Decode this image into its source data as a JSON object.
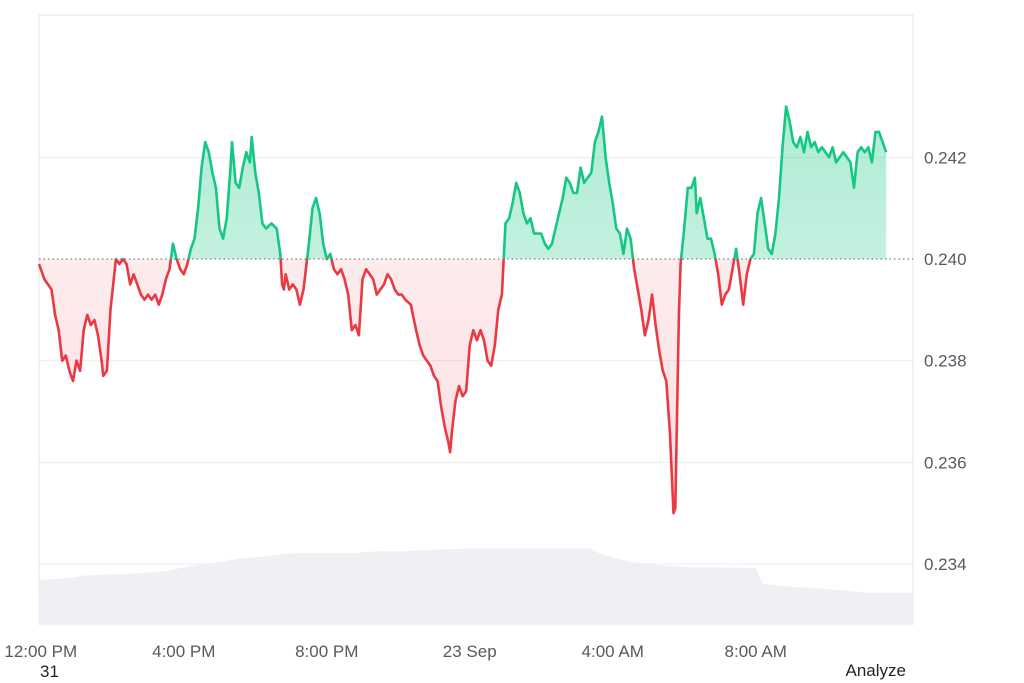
{
  "footer": {
    "left_text": "31",
    "analyze_label": "Analyze"
  },
  "chart_data": {
    "type": "line",
    "title": "",
    "xlabel": "",
    "ylabel": "",
    "baseline": 0.24,
    "ylim": [
      0.2328,
      0.2448
    ],
    "yticks": [
      0.234,
      0.236,
      0.238,
      0.24,
      0.242
    ],
    "ytick_labels": [
      "0.234",
      "0.236",
      "0.238",
      "0.240",
      "0.242"
    ],
    "xticks": [
      {
        "label": "12:00 PM",
        "hours": 0
      },
      {
        "label": "4:00 PM",
        "hours": 4
      },
      {
        "label": "8:00 PM",
        "hours": 8
      },
      {
        "label": "23 Sep",
        "hours": 12
      },
      {
        "label": "4:00 AM",
        "hours": 16
      },
      {
        "label": "8:00 AM",
        "hours": 20
      }
    ],
    "xrange_hours": [
      -0.05,
      24.4
    ],
    "grid": true,
    "colors": {
      "above": "#16c784",
      "below": "#ea3943",
      "above_fill": "#16c784",
      "below_fill": "#ea3943",
      "volume": "#eef0f3",
      "grid": "#eceef1"
    },
    "series": [
      {
        "points": [
          [
            -0.05,
            0.2399
          ],
          [
            0.1,
            0.2396
          ],
          [
            0.3,
            0.2394
          ],
          [
            0.4,
            0.2389
          ],
          [
            0.5,
            0.2386
          ],
          [
            0.6,
            0.238
          ],
          [
            0.7,
            0.2381
          ],
          [
            0.8,
            0.2378
          ],
          [
            0.9,
            0.2376
          ],
          [
            1.0,
            0.238
          ],
          [
            1.1,
            0.2378
          ],
          [
            1.2,
            0.2386
          ],
          [
            1.3,
            0.2389
          ],
          [
            1.4,
            0.2387
          ],
          [
            1.5,
            0.2388
          ],
          [
            1.6,
            0.2385
          ],
          [
            1.7,
            0.238
          ],
          [
            1.75,
            0.2377
          ],
          [
            1.85,
            0.2378
          ],
          [
            1.95,
            0.239
          ],
          [
            2.1,
            0.24
          ],
          [
            2.2,
            0.2399
          ],
          [
            2.3,
            0.24
          ],
          [
            2.4,
            0.2399
          ],
          [
            2.5,
            0.2395
          ],
          [
            2.6,
            0.2397
          ],
          [
            2.7,
            0.2395
          ],
          [
            2.8,
            0.2393
          ],
          [
            2.9,
            0.2392
          ],
          [
            3.0,
            0.2393
          ],
          [
            3.1,
            0.2392
          ],
          [
            3.2,
            0.2393
          ],
          [
            3.3,
            0.2391
          ],
          [
            3.4,
            0.2393
          ],
          [
            3.5,
            0.2396
          ],
          [
            3.6,
            0.2398
          ],
          [
            3.7,
            0.2403
          ],
          [
            3.8,
            0.24
          ],
          [
            3.9,
            0.2398
          ],
          [
            4.0,
            0.2397
          ],
          [
            4.1,
            0.2399
          ],
          [
            4.2,
            0.2402
          ],
          [
            4.3,
            0.2404
          ],
          [
            4.4,
            0.241
          ],
          [
            4.5,
            0.2418
          ],
          [
            4.6,
            0.2423
          ],
          [
            4.7,
            0.2421
          ],
          [
            4.8,
            0.2417
          ],
          [
            4.9,
            0.2414
          ],
          [
            5.0,
            0.2406
          ],
          [
            5.1,
            0.2404
          ],
          [
            5.2,
            0.2408
          ],
          [
            5.3,
            0.2417
          ],
          [
            5.35,
            0.2423
          ],
          [
            5.45,
            0.2415
          ],
          [
            5.55,
            0.2414
          ],
          [
            5.65,
            0.2418
          ],
          [
            5.75,
            0.2421
          ],
          [
            5.85,
            0.2419
          ],
          [
            5.9,
            0.2424
          ],
          [
            6.0,
            0.2417
          ],
          [
            6.1,
            0.2413
          ],
          [
            6.2,
            0.2407
          ],
          [
            6.3,
            0.2406
          ],
          [
            6.45,
            0.2407
          ],
          [
            6.6,
            0.2406
          ],
          [
            6.7,
            0.2401
          ],
          [
            6.75,
            0.2395
          ],
          [
            6.8,
            0.2394
          ],
          [
            6.85,
            0.2397
          ],
          [
            6.95,
            0.2394
          ],
          [
            7.05,
            0.2395
          ],
          [
            7.15,
            0.2394
          ],
          [
            7.25,
            0.2391
          ],
          [
            7.35,
            0.2394
          ],
          [
            7.5,
            0.2403
          ],
          [
            7.6,
            0.241
          ],
          [
            7.7,
            0.2412
          ],
          [
            7.8,
            0.2409
          ],
          [
            7.9,
            0.2403
          ],
          [
            8.0,
            0.24
          ],
          [
            8.1,
            0.2401
          ],
          [
            8.2,
            0.2398
          ],
          [
            8.3,
            0.2397
          ],
          [
            8.4,
            0.2398
          ],
          [
            8.5,
            0.2396
          ],
          [
            8.6,
            0.2393
          ],
          [
            8.7,
            0.2386
          ],
          [
            8.8,
            0.2387
          ],
          [
            8.9,
            0.2385
          ],
          [
            9.0,
            0.2396
          ],
          [
            9.1,
            0.2398
          ],
          [
            9.2,
            0.2397
          ],
          [
            9.3,
            0.2396
          ],
          [
            9.4,
            0.2393
          ],
          [
            9.5,
            0.2394
          ],
          [
            9.6,
            0.2395
          ],
          [
            9.7,
            0.2397
          ],
          [
            9.8,
            0.2396
          ],
          [
            9.9,
            0.2394
          ],
          [
            10.0,
            0.2393
          ],
          [
            10.1,
            0.2393
          ],
          [
            10.2,
            0.2392
          ],
          [
            10.35,
            0.2391
          ],
          [
            10.5,
            0.2386
          ],
          [
            10.6,
            0.2383
          ],
          [
            10.7,
            0.2381
          ],
          [
            10.8,
            0.238
          ],
          [
            10.9,
            0.2379
          ],
          [
            11.0,
            0.2377
          ],
          [
            11.1,
            0.2376
          ],
          [
            11.2,
            0.2371
          ],
          [
            11.3,
            0.2367
          ],
          [
            11.4,
            0.2364
          ],
          [
            11.45,
            0.2362
          ],
          [
            11.5,
            0.2366
          ],
          [
            11.6,
            0.2372
          ],
          [
            11.7,
            0.2375
          ],
          [
            11.8,
            0.2373
          ],
          [
            11.9,
            0.2374
          ],
          [
            12.0,
            0.2383
          ],
          [
            12.1,
            0.2386
          ],
          [
            12.2,
            0.2384
          ],
          [
            12.3,
            0.2386
          ],
          [
            12.4,
            0.2384
          ],
          [
            12.5,
            0.238
          ],
          [
            12.6,
            0.2379
          ],
          [
            12.7,
            0.2383
          ],
          [
            12.8,
            0.239
          ],
          [
            12.9,
            0.2393
          ],
          [
            13.0,
            0.2407
          ],
          [
            13.1,
            0.2408
          ],
          [
            13.2,
            0.2411
          ],
          [
            13.3,
            0.2415
          ],
          [
            13.4,
            0.2413
          ],
          [
            13.5,
            0.2409
          ],
          [
            13.6,
            0.2407
          ],
          [
            13.7,
            0.2408
          ],
          [
            13.8,
            0.2405
          ],
          [
            13.9,
            0.2405
          ],
          [
            14.0,
            0.2405
          ],
          [
            14.1,
            0.2403
          ],
          [
            14.2,
            0.2402
          ],
          [
            14.3,
            0.2403
          ],
          [
            14.4,
            0.2406
          ],
          [
            14.5,
            0.2409
          ],
          [
            14.6,
            0.2412
          ],
          [
            14.7,
            0.2416
          ],
          [
            14.8,
            0.2415
          ],
          [
            14.9,
            0.2413
          ],
          [
            15.0,
            0.2413
          ],
          [
            15.1,
            0.2418
          ],
          [
            15.2,
            0.2415
          ],
          [
            15.3,
            0.2416
          ],
          [
            15.4,
            0.2417
          ],
          [
            15.5,
            0.2423
          ],
          [
            15.6,
            0.2425
          ],
          [
            15.7,
            0.2428
          ],
          [
            15.8,
            0.242
          ],
          [
            15.9,
            0.2415
          ],
          [
            16.0,
            0.2411
          ],
          [
            16.1,
            0.2406
          ],
          [
            16.2,
            0.2405
          ],
          [
            16.3,
            0.2401
          ],
          [
            16.4,
            0.2406
          ],
          [
            16.5,
            0.2404
          ],
          [
            16.6,
            0.2398
          ],
          [
            16.7,
            0.2394
          ],
          [
            16.8,
            0.239
          ],
          [
            16.9,
            0.2385
          ],
          [
            17.0,
            0.2388
          ],
          [
            17.1,
            0.2393
          ],
          [
            17.2,
            0.2387
          ],
          [
            17.3,
            0.2382
          ],
          [
            17.4,
            0.2378
          ],
          [
            17.5,
            0.2376
          ],
          [
            17.6,
            0.2366
          ],
          [
            17.7,
            0.235
          ],
          [
            17.75,
            0.2351
          ],
          [
            17.85,
            0.2389
          ],
          [
            17.9,
            0.2399
          ],
          [
            18.0,
            0.2406
          ],
          [
            18.1,
            0.2414
          ],
          [
            18.2,
            0.2414
          ],
          [
            18.3,
            0.2416
          ],
          [
            18.35,
            0.2409
          ],
          [
            18.45,
            0.2412
          ],
          [
            18.55,
            0.2408
          ],
          [
            18.65,
            0.2404
          ],
          [
            18.75,
            0.2404
          ],
          [
            18.85,
            0.2401
          ],
          [
            18.95,
            0.2397
          ],
          [
            19.05,
            0.2391
          ],
          [
            19.15,
            0.2393
          ],
          [
            19.25,
            0.2394
          ],
          [
            19.35,
            0.2398
          ],
          [
            19.45,
            0.2402
          ],
          [
            19.55,
            0.2397
          ],
          [
            19.65,
            0.2391
          ],
          [
            19.75,
            0.2397
          ],
          [
            19.85,
            0.24
          ],
          [
            19.95,
            0.2401
          ],
          [
            20.05,
            0.2409
          ],
          [
            20.15,
            0.2412
          ],
          [
            20.25,
            0.2407
          ],
          [
            20.35,
            0.2402
          ],
          [
            20.45,
            0.2401
          ],
          [
            20.55,
            0.2405
          ],
          [
            20.65,
            0.2412
          ],
          [
            20.75,
            0.2422
          ],
          [
            20.85,
            0.243
          ],
          [
            20.95,
            0.2427
          ],
          [
            21.05,
            0.2423
          ],
          [
            21.15,
            0.2422
          ],
          [
            21.25,
            0.2424
          ],
          [
            21.35,
            0.2421
          ],
          [
            21.45,
            0.2425
          ],
          [
            21.55,
            0.2422
          ],
          [
            21.65,
            0.2423
          ],
          [
            21.75,
            0.2421
          ],
          [
            21.85,
            0.2422
          ],
          [
            21.95,
            0.2421
          ],
          [
            22.05,
            0.242
          ],
          [
            22.15,
            0.2422
          ],
          [
            22.25,
            0.2419
          ],
          [
            22.35,
            0.242
          ],
          [
            22.45,
            0.2421
          ],
          [
            22.55,
            0.242
          ],
          [
            22.65,
            0.2419
          ],
          [
            22.75,
            0.2414
          ],
          [
            22.85,
            0.2421
          ],
          [
            22.95,
            0.2422
          ],
          [
            23.05,
            0.2421
          ],
          [
            23.15,
            0.2422
          ],
          [
            23.25,
            0.2419
          ],
          [
            23.35,
            0.2425
          ],
          [
            23.45,
            0.2425
          ],
          [
            23.55,
            0.2423
          ],
          [
            23.65,
            0.2421
          ]
        ]
      }
    ],
    "volume": {
      "points": [
        [
          -0.05,
          0.05
        ],
        [
          0.8,
          0.052
        ],
        [
          1.2,
          0.055
        ],
        [
          2.5,
          0.057
        ],
        [
          3.5,
          0.06
        ],
        [
          4.0,
          0.064
        ],
        [
          4.6,
          0.068
        ],
        [
          5.0,
          0.07
        ],
        [
          5.6,
          0.074
        ],
        [
          6.2,
          0.076
        ],
        [
          6.6,
          0.078
        ],
        [
          7.2,
          0.08
        ],
        [
          8.0,
          0.08
        ],
        [
          8.8,
          0.08
        ],
        [
          9.4,
          0.082
        ],
        [
          10.2,
          0.082
        ],
        [
          11.2,
          0.084
        ],
        [
          12.0,
          0.085
        ],
        [
          13.2,
          0.085
        ],
        [
          14.4,
          0.085
        ],
        [
          15.4,
          0.085
        ],
        [
          15.6,
          0.08
        ],
        [
          16.0,
          0.075
        ],
        [
          16.5,
          0.07
        ],
        [
          17.0,
          0.068
        ],
        [
          17.5,
          0.066
        ],
        [
          18.2,
          0.064
        ],
        [
          19.0,
          0.064
        ],
        [
          20.0,
          0.063
        ],
        [
          20.2,
          0.046
        ],
        [
          20.6,
          0.044
        ],
        [
          21.2,
          0.042
        ],
        [
          22.0,
          0.04
        ],
        [
          22.6,
          0.038
        ],
        [
          23.0,
          0.036
        ],
        [
          23.6,
          0.036
        ]
      ]
    }
  }
}
